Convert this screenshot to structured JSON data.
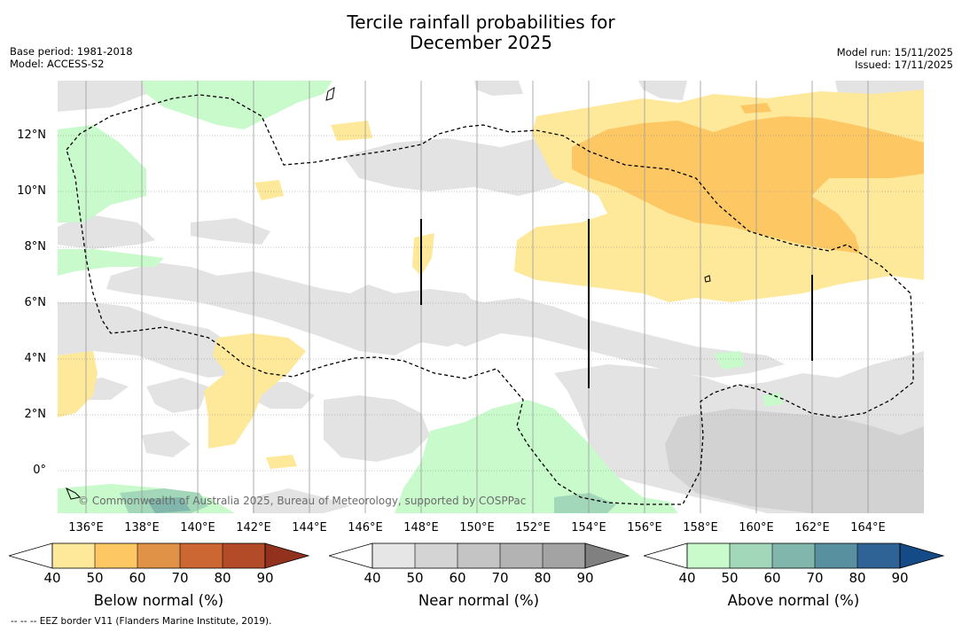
{
  "title_line1": "Tercile rainfall probabilities for",
  "title_line2": "December 2025",
  "base_period": "Base period: 1981-2018",
  "model": "Model: ACCESS-S2",
  "model_run": "Model run: 15/11/2025",
  "issued": "Issued: 17/11/2025",
  "copyright": "© Commonwealth of Australia 2025, Bureau of Meteorology, supported by COSPPac",
  "footer_note": "--  --  -- EEZ border V11 (Flanders Marine Institute, 2019).",
  "lat_labels": [
    "12°N",
    "10°N",
    "8°N",
    "6°N",
    "4°N",
    "2°N",
    "0°"
  ],
  "lon_labels": [
    "136°E",
    "138°E",
    "140°E",
    "142°E",
    "144°E",
    "146°E",
    "148°E",
    "150°E",
    "152°E",
    "154°E",
    "156°E",
    "158°E",
    "160°E",
    "162°E",
    "164°E"
  ],
  "colorbars": {
    "below": {
      "title": "Below normal (%)",
      "ticks": [
        "40",
        "50",
        "60",
        "70",
        "80",
        "90"
      ],
      "colors": [
        "#ffffff",
        "#fee89a",
        "#fdc864",
        "#e09346",
        "#cc6633",
        "#b34a28",
        "#93311f"
      ]
    },
    "near": {
      "title": "Near normal (%)",
      "ticks": [
        "40",
        "50",
        "60",
        "70",
        "80",
        "90"
      ],
      "colors": [
        "#ffffff",
        "#e6e6e6",
        "#d4d4d4",
        "#c4c4c4",
        "#b3b3b3",
        "#a3a3a3",
        "#808080"
      ]
    },
    "above": {
      "title": "Above normal (%)",
      "ticks": [
        "40",
        "50",
        "60",
        "70",
        "80",
        "90"
      ],
      "colors": [
        "#ffffff",
        "#c8facb",
        "#a3d7b9",
        "#80b6ab",
        "#5990a0",
        "#2f6396",
        "#144a86"
      ]
    }
  }
}
